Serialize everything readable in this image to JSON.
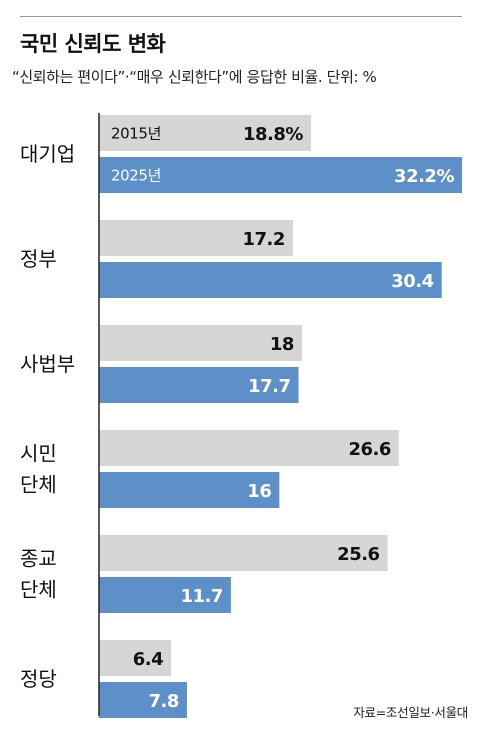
{
  "header": {
    "title": "국민 신뢰도 변화",
    "subtitle": "“신뢰하는 편이다”·“매우 신뢰한다”에 응답한 비율. 단위: %"
  },
  "source": "자료=조선일보·서울대",
  "colors": {
    "bar_2015": "#d6d6d6",
    "bar_2025": "#5d8fc9",
    "axis": "#222222",
    "label_2015": "#111111",
    "label_2025": "#ffffff"
  },
  "chart_data": {
    "type": "bar",
    "orientation": "horizontal",
    "categories": [
      [
        "대기업"
      ],
      [
        "정부"
      ],
      [
        "사법부"
      ],
      [
        "시민",
        "단체"
      ],
      [
        "종교",
        "단체"
      ],
      [
        "정당"
      ]
    ],
    "series": [
      {
        "name": "2015년",
        "values": [
          18.8,
          17.2,
          18,
          26.6,
          25.6,
          6.4
        ],
        "labels": [
          "18.8%",
          "17.2",
          "18",
          "26.6",
          "25.6",
          "6.4"
        ]
      },
      {
        "name": "2025년",
        "values": [
          32.2,
          30.4,
          17.7,
          16,
          11.7,
          7.8
        ],
        "labels": [
          "32.2%",
          "30.4",
          "17.7",
          "16",
          "11.7",
          "7.8"
        ]
      }
    ],
    "unit": "%",
    "legend": "inside first category bars",
    "grid": false
  }
}
